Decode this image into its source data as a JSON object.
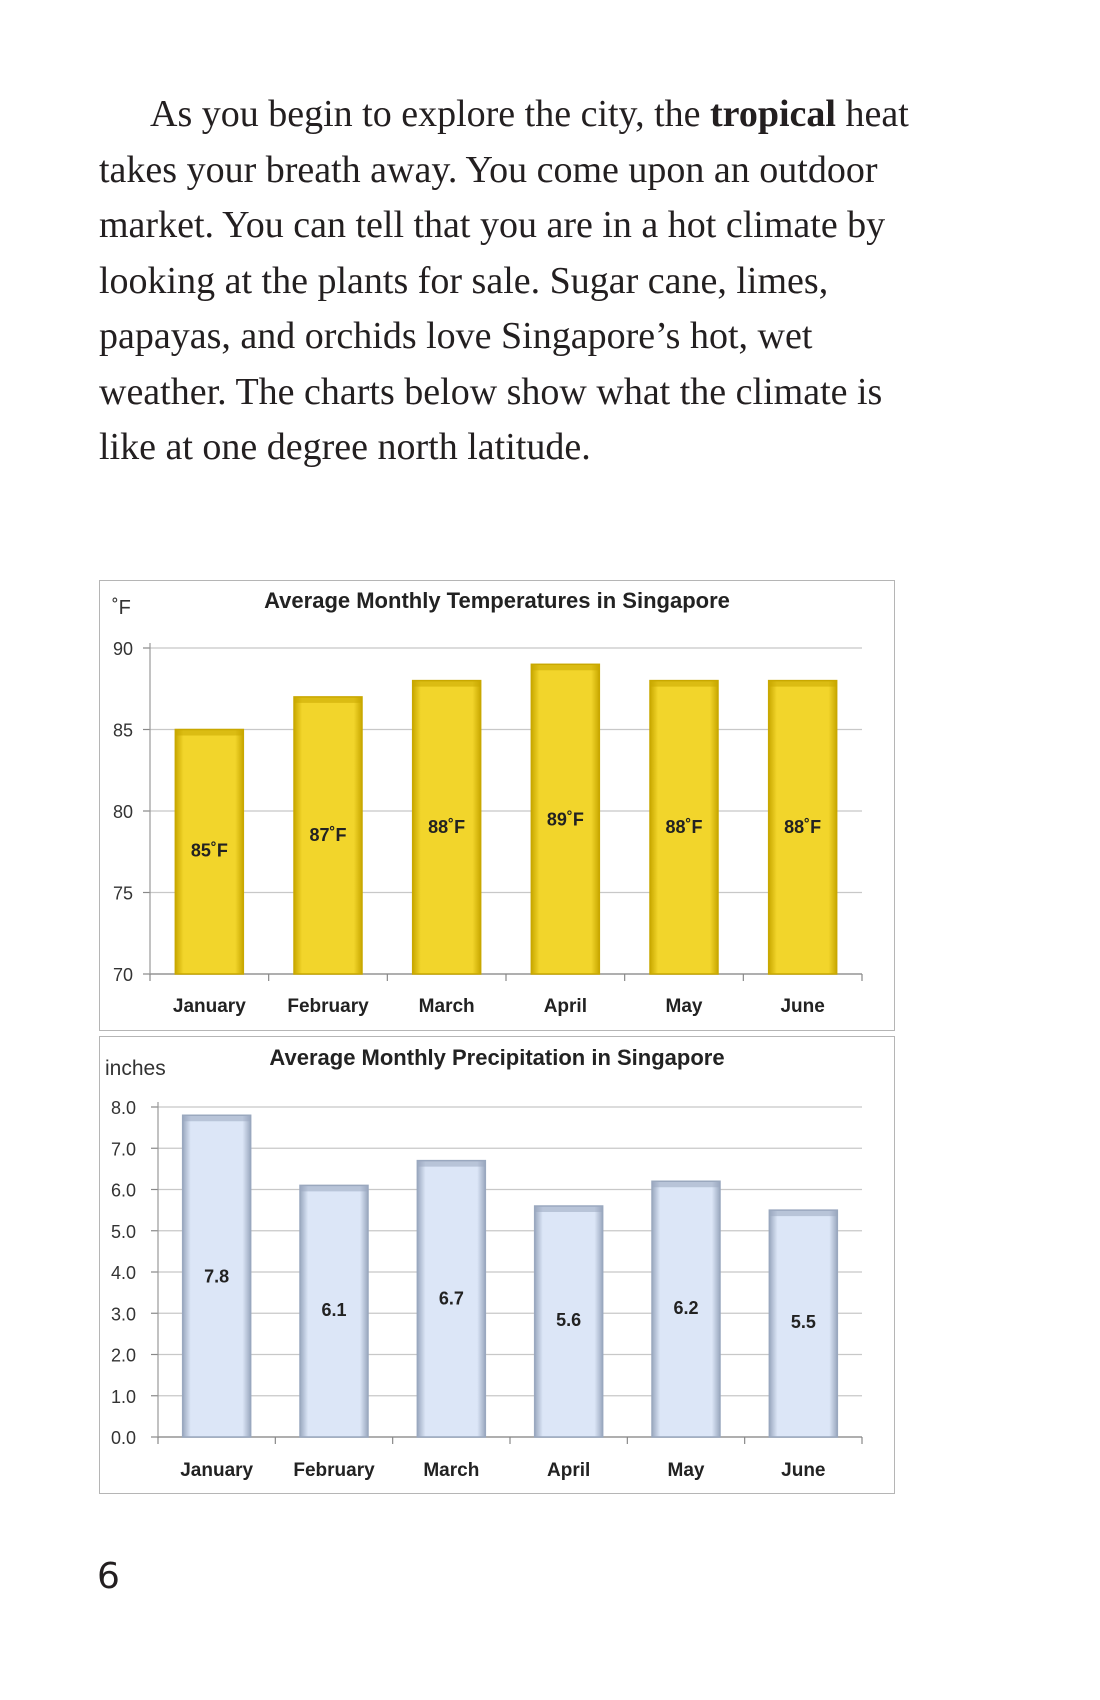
{
  "paragraph": {
    "part1": "As you begin to explore the city, the ",
    "bold_word": "tropical",
    "part2": " heat takes your breath away. You come upon an outdoor market. You can tell that you are in a hot climate by looking at the plants for sale. Sugar cane, limes, papayas, and orchids love Singapore’s hot, wet weather. The charts below show what the climate is like at one degree north latitude."
  },
  "page_number": "6",
  "chart_data": [
    {
      "type": "bar",
      "title": "Average Monthly Temperatures in Singapore",
      "ylabel": "˚F",
      "xlabel": "",
      "categories": [
        "January",
        "February",
        "March",
        "April",
        "May",
        "June"
      ],
      "values": [
        85,
        87,
        88,
        89,
        88,
        88
      ],
      "data_labels": [
        "85˚F",
        "87˚F",
        "88˚F",
        "89˚F",
        "88˚F",
        "88˚F"
      ],
      "ylim": [
        70,
        90
      ],
      "yticks": [
        "70",
        "75",
        "80",
        "85",
        "90"
      ],
      "grid": true,
      "color": "#f2d52b",
      "edge_color": "#c9a800"
    },
    {
      "type": "bar",
      "title": "Average Monthly Precipitation in Singapore",
      "ylabel": "inches",
      "xlabel": "",
      "categories": [
        "January",
        "February",
        "March",
        "April",
        "May",
        "June"
      ],
      "values": [
        7.8,
        6.1,
        6.7,
        5.6,
        6.2,
        5.5
      ],
      "data_labels": [
        "7.8",
        "6.1",
        "6.7",
        "5.6",
        "6.2",
        "5.5"
      ],
      "ylim": [
        0,
        8
      ],
      "yticks": [
        "0.0",
        "1.0",
        "2.0",
        "3.0",
        "4.0",
        "5.0",
        "6.0",
        "7.0",
        "8.0"
      ],
      "grid": true,
      "color": "#dce6f7",
      "edge_color": "#9aa8bf"
    }
  ]
}
